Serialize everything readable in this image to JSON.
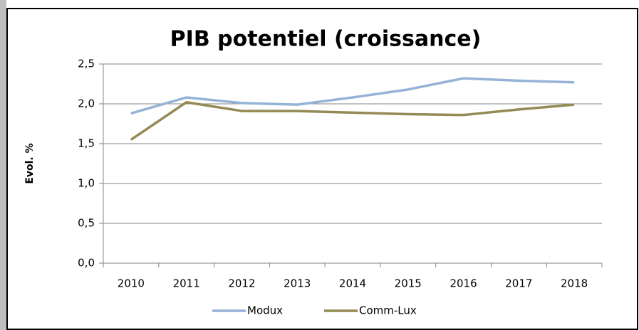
{
  "chart_data": {
    "type": "line",
    "title": "PIB potentiel (croissance)",
    "y_label": "Evol. %",
    "categories": [
      "2010",
      "2011",
      "2012",
      "2013",
      "2014",
      "2015",
      "2016",
      "2017",
      "2018"
    ],
    "series": [
      {
        "name": "Modux",
        "color": "#95b3d7",
        "values": [
          1.88,
          2.08,
          2.01,
          1.99,
          2.08,
          2.18,
          2.32,
          2.29,
          2.27
        ]
      },
      {
        "name": "Comm-Lux",
        "color": "#948a54",
        "values": [
          1.55,
          2.02,
          1.91,
          1.91,
          1.89,
          1.87,
          1.86,
          1.93,
          1.99
        ]
      }
    ],
    "ylim": [
      0,
      2.5
    ],
    "yticks": [
      {
        "value": 0,
        "label": "0,0"
      },
      {
        "value": 0.5,
        "label": "0,5"
      },
      {
        "value": 1,
        "label": "1,0"
      },
      {
        "value": 1.5,
        "label": "1,5"
      },
      {
        "value": 2,
        "label": "2,0"
      },
      {
        "value": 2.5,
        "label": "2,5"
      }
    ],
    "grid": true,
    "legend": "bottom"
  }
}
